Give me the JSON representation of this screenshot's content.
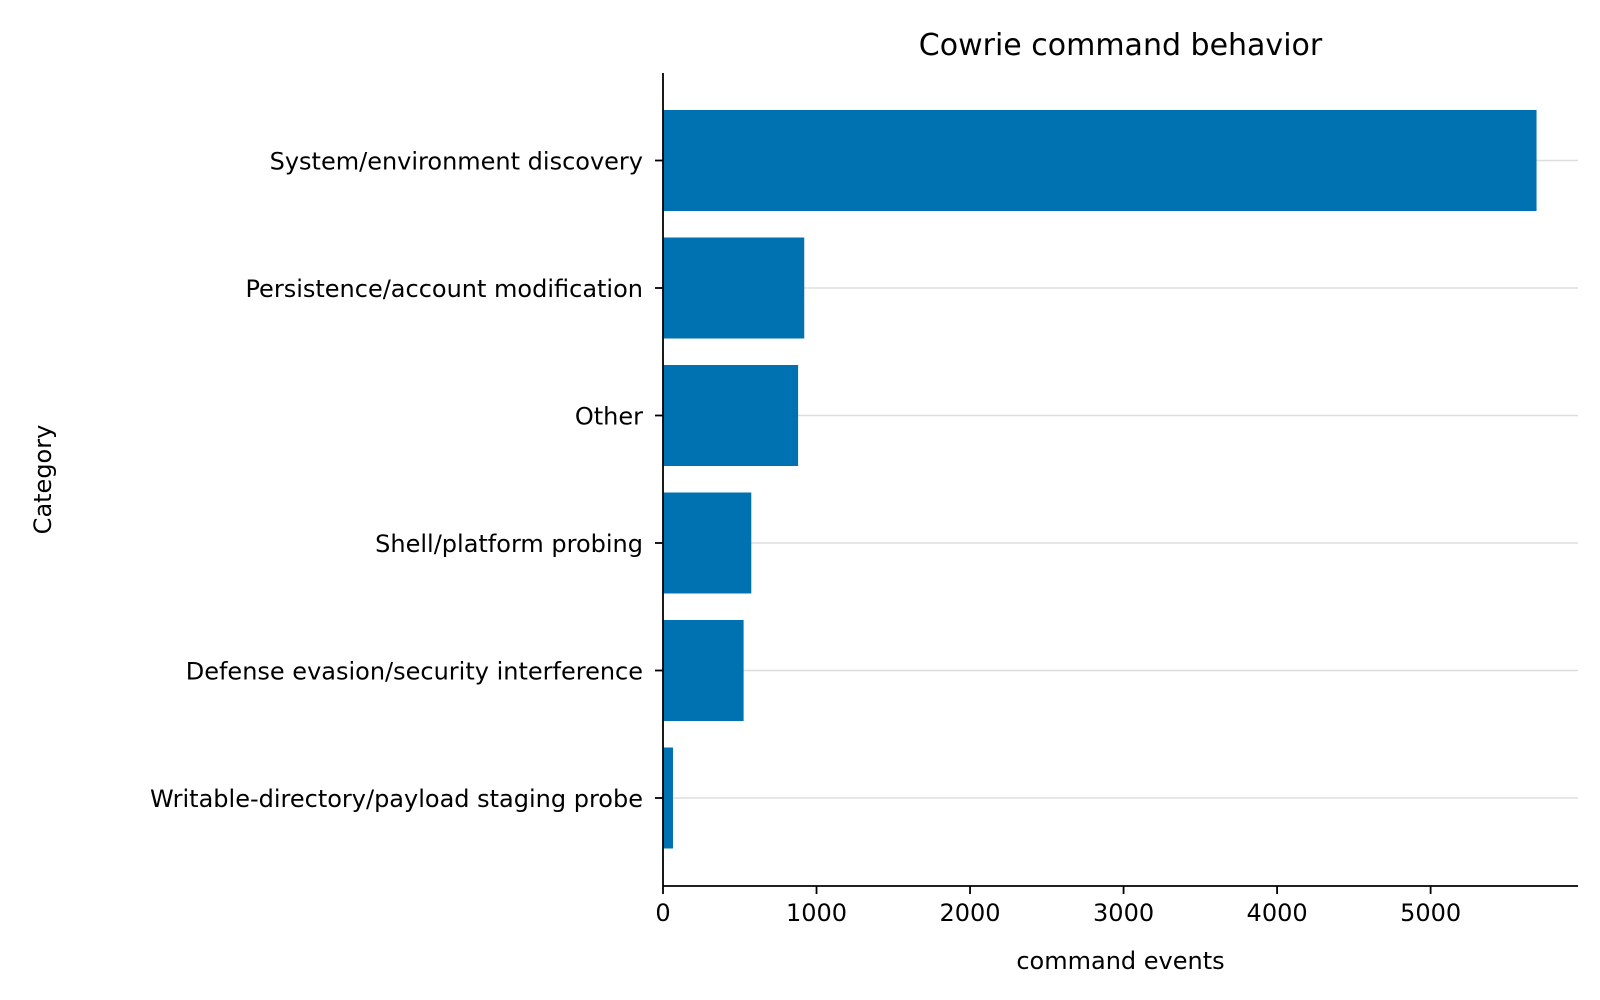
{
  "chart_data": {
    "type": "bar",
    "orientation": "horizontal",
    "title": "Cowrie command behavior",
    "xlabel": "command events",
    "ylabel": "Category",
    "categories": [
      "System/environment discovery",
      "Persistence/account modification",
      "Other",
      "Shell/platform probing",
      "Defense evasion/security interference",
      "Writable-directory/payload staging probe"
    ],
    "values": [
      5690,
      920,
      880,
      575,
      525,
      65
    ],
    "xlim": [
      0,
      5960
    ],
    "xticks": [
      0,
      1000,
      2000,
      3000,
      4000,
      5000
    ],
    "grid": "x-major horizontal lines at category positions",
    "bar_color": "#0072b2"
  }
}
